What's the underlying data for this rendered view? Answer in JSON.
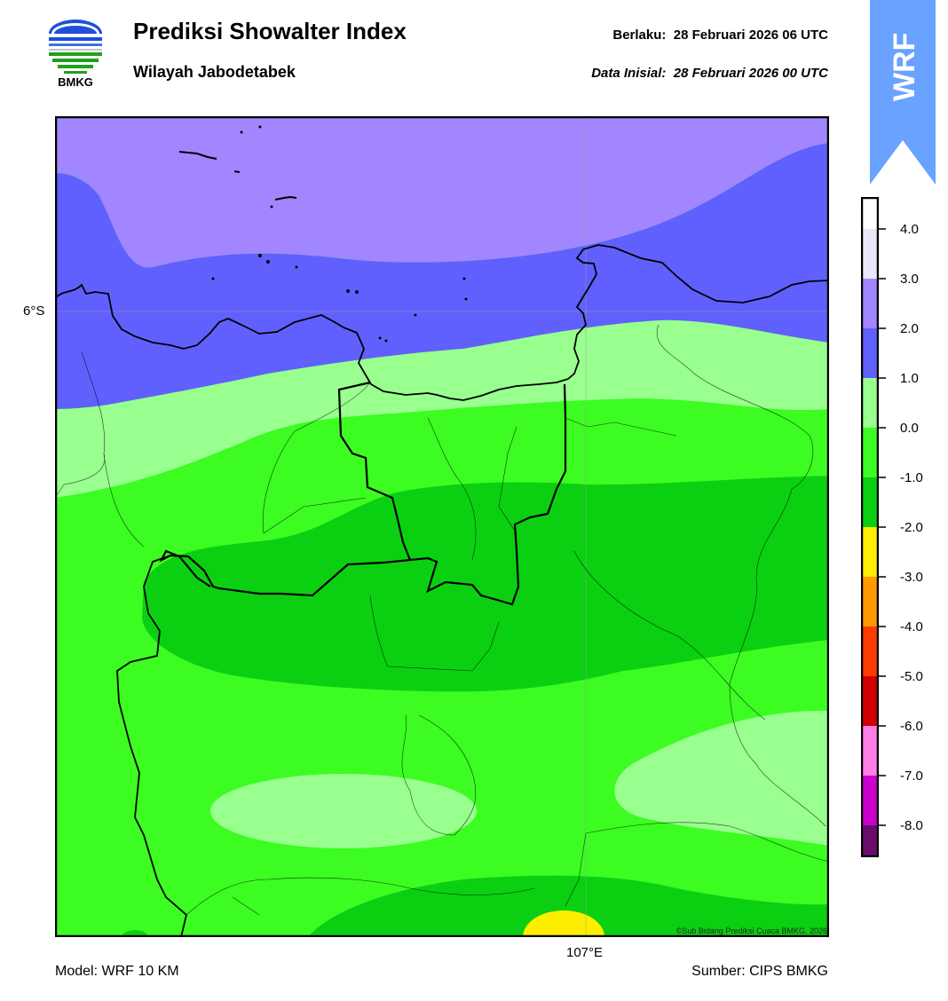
{
  "header": {
    "logo_text": "BMKG",
    "title": "Prediksi Showalter Index",
    "subtitle": "Wilayah Jabodetabek",
    "valid_label": "Berlaku:",
    "valid_value": "28 Februari 2026 06 UTC",
    "init_label": "Data Inisial:",
    "init_value": "28 Februari 2026 00 UTC",
    "ribbon_text": "WRF"
  },
  "map": {
    "lat_label": "6°S",
    "lon_label": "107°E",
    "copyright": "©Sub Bidang Prediksi Cuaca BMKG, 2026"
  },
  "colorbar": {
    "labels": [
      "4.0",
      "3.0",
      "2.0",
      "1.0",
      "0.0",
      "-1.0",
      "-2.0",
      "-3.0",
      "-4.0",
      "-5.0",
      "-6.0",
      "-7.0",
      "-8.0"
    ],
    "colors": [
      "#ffffff",
      "#e8e8fa",
      "#a186ff",
      "#6060ff",
      "#99ff8f",
      "#3cfc22",
      "#0bd012",
      "#ffee00",
      "#ff9a00",
      "#ff3c00",
      "#d00000",
      "#ff7fe6",
      "#cc00cc",
      "#6a0d6a"
    ]
  },
  "footer": {
    "model": "Model: WRF 10 KM",
    "source": "Sumber: CIPS BMKG"
  }
}
